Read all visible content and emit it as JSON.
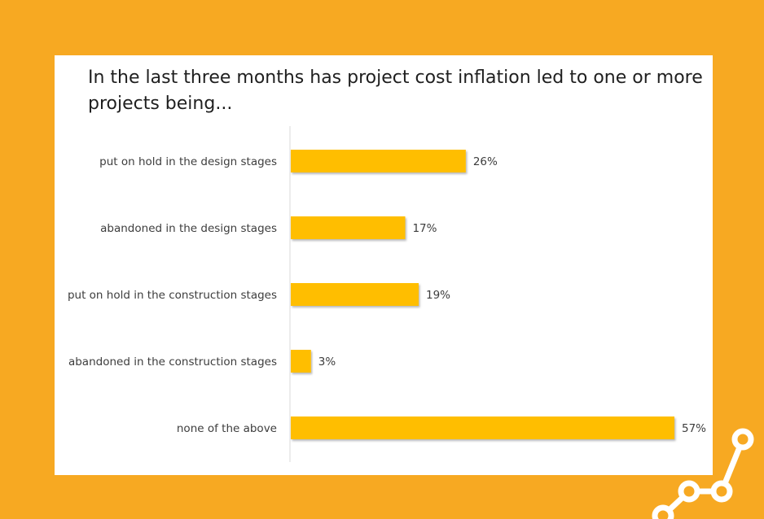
{
  "colors": {
    "background": "#f7a922",
    "panel": "#ffffff",
    "bar": "#ffbe00",
    "axis": "#d9d9d9",
    "decoration": "#ffffff"
  },
  "decoration_icon": "connected-nodes-icon",
  "chart_data": {
    "type": "bar",
    "orientation": "horizontal",
    "title": "In the last three months has project cost inflation led to one or more projects being...",
    "categories": [
      "put on hold in the design stages",
      "abandoned in the design stages",
      "put on hold in the construction stages",
      "abandoned in the construction stages",
      "none of the above"
    ],
    "values": [
      26,
      17,
      19,
      3,
      57
    ],
    "value_labels": [
      "26%",
      "17%",
      "19%",
      "3%",
      "57%"
    ],
    "unit": "%",
    "xlim": [
      0,
      57
    ],
    "grid": false,
    "legend": "none"
  }
}
